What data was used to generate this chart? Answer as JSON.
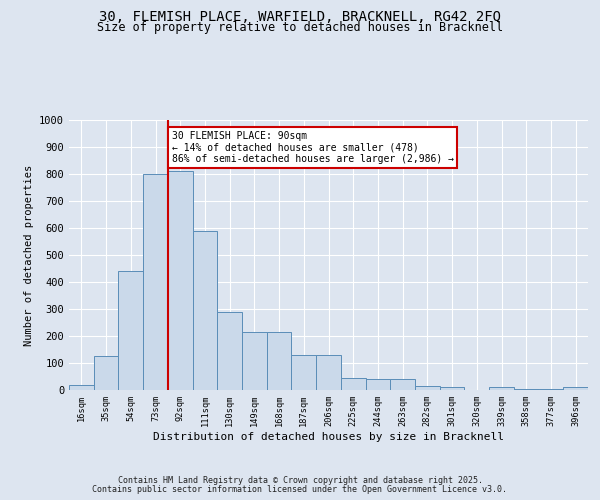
{
  "title_line1": "30, FLEMISH PLACE, WARFIELD, BRACKNELL, RG42 2FQ",
  "title_line2": "Size of property relative to detached houses in Bracknell",
  "xlabel": "Distribution of detached houses by size in Bracknell",
  "ylabel": "Number of detached properties",
  "bin_labels": [
    "16sqm",
    "35sqm",
    "54sqm",
    "73sqm",
    "92sqm",
    "111sqm",
    "130sqm",
    "149sqm",
    "168sqm",
    "187sqm",
    "206sqm",
    "225sqm",
    "244sqm",
    "263sqm",
    "282sqm",
    "301sqm",
    "320sqm",
    "339sqm",
    "358sqm",
    "377sqm",
    "396sqm"
  ],
  "bar_heights": [
    20,
    125,
    440,
    800,
    810,
    590,
    290,
    215,
    215,
    130,
    130,
    45,
    40,
    40,
    15,
    10,
    0,
    10,
    5,
    5,
    10
  ],
  "bar_color": "#cad9ea",
  "bar_edge_color": "#5a8db8",
  "vline_color": "#cc0000",
  "vline_bin_index": 4,
  "annotation_text": "30 FLEMISH PLACE: 90sqm\n← 14% of detached houses are smaller (478)\n86% of semi-detached houses are larger (2,986) →",
  "annotation_box_facecolor": "#ffffff",
  "annotation_box_edgecolor": "#cc0000",
  "ylim": [
    0,
    1000
  ],
  "yticks": [
    0,
    100,
    200,
    300,
    400,
    500,
    600,
    700,
    800,
    900,
    1000
  ],
  "footer_line1": "Contains HM Land Registry data © Crown copyright and database right 2025.",
  "footer_line2": "Contains public sector information licensed under the Open Government Licence v3.0.",
  "background_color": "#dde5f0",
  "plot_bg_color": "#dde5f0",
  "grid_color": "#ffffff"
}
